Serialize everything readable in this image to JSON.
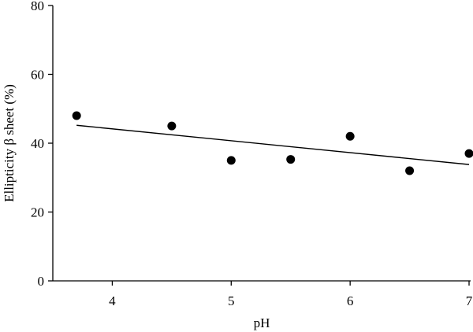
{
  "chart_data": {
    "type": "scatter",
    "title": "",
    "xlabel": "pH",
    "ylabel": "Ellipticity β sheet (%)",
    "xlim": [
      3.5,
      7.0
    ],
    "ylim": [
      0,
      80
    ],
    "xticks": [
      4,
      5,
      6,
      7
    ],
    "yticks": [
      0,
      20,
      40,
      60,
      80
    ],
    "xtick_labels": [
      "4",
      "5",
      "6",
      "7"
    ],
    "ytick_labels": [
      "0",
      "20",
      "40",
      "60",
      "80"
    ],
    "grid": false,
    "legend": "none",
    "series": [
      {
        "x": [
          3.7,
          4.5,
          5.0,
          5.5,
          6.0,
          6.5,
          7.0
        ],
        "y": [
          48,
          45,
          35,
          35.3,
          42,
          32,
          37
        ],
        "marker": "circle",
        "color": "#000000"
      }
    ],
    "trendline": {
      "type": "linear",
      "x": [
        3.7,
        7.0
      ],
      "y": [
        45.2,
        33.8
      ],
      "color": "#000000"
    }
  }
}
